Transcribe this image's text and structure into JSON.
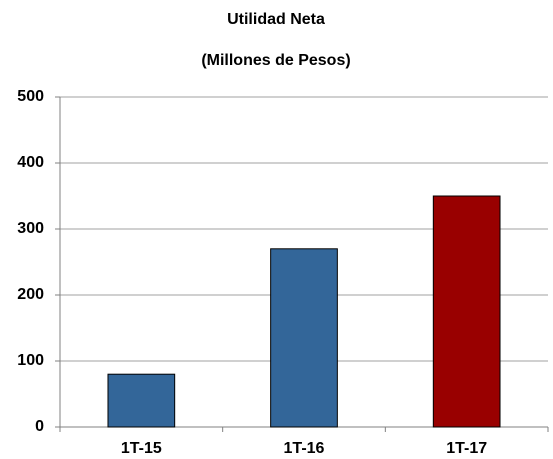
{
  "chart_data": {
    "type": "bar",
    "title": "Utilidad Neta",
    "subtitle": "(Millones de Pesos)",
    "categories": [
      "1T-15",
      "1T-16",
      "1T-17"
    ],
    "values": [
      80,
      270,
      350
    ],
    "colors": [
      "#336699",
      "#336699",
      "#990000"
    ],
    "ylim": [
      0,
      500
    ],
    "yticks": [
      0,
      100,
      200,
      300,
      400,
      500
    ],
    "grid": true
  }
}
